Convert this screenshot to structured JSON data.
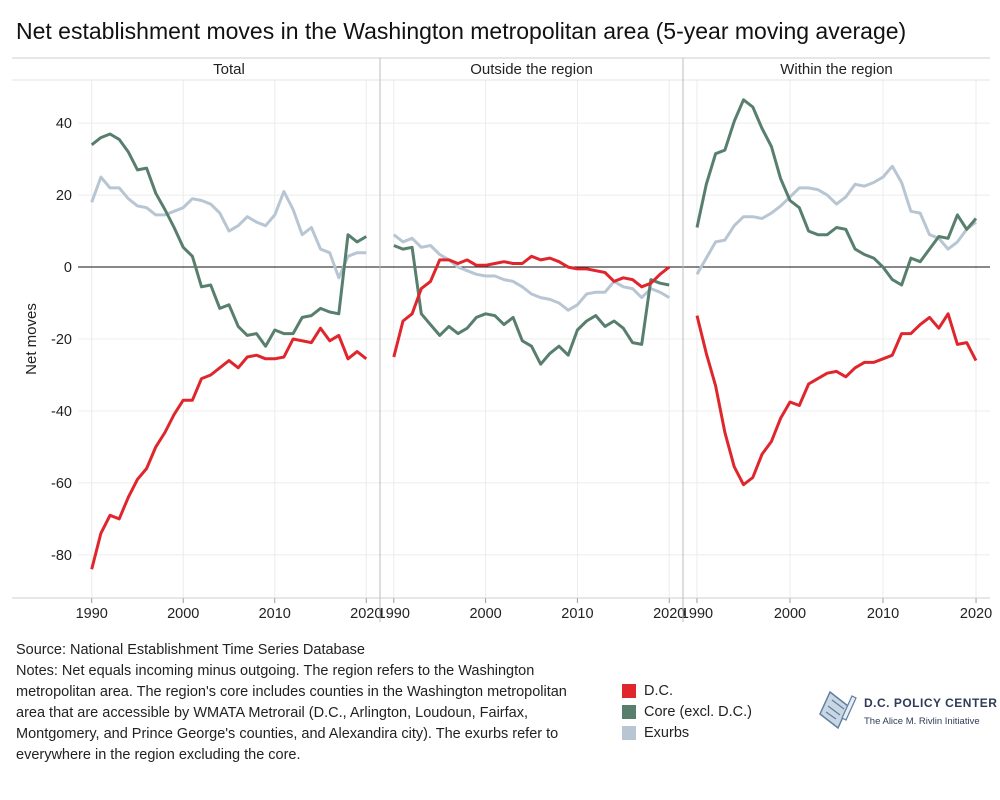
{
  "title": "Net establishment moves in the Washington metropolitan area (5-year moving average)",
  "source_line": "Source: National Establishment Time Series Database",
  "notes": "Notes: Net equals incoming minus outgoing. The region refers to the Washington metropolitan area. The region's core includes counties in the Washington metropolitan area that are accessible by WMATA Metrorail (D.C., Arlington, Loudoun, Fairfax, Montgomery, and Prince George's counties, and Alexandira city). The exurbs refer to everywhere in the region excluding the core.",
  "logo": {
    "name": "D.C. POLICY CENTER",
    "tagline": "The Alice M. Rivlin Initiative",
    "icon": "dc-map-document-icon"
  },
  "colors": {
    "dc": "#e0262d",
    "core": "#587f6e",
    "exurbs": "#b8c6d3"
  },
  "chart_data": {
    "type": "line",
    "ylabel": "Net moves",
    "ylim": [
      -92,
      52
    ],
    "yticks": [
      -80,
      -60,
      -40,
      -20,
      0,
      20,
      40
    ],
    "xlim": [
      1988.5,
      2021.5
    ],
    "xticks": [
      1990,
      2000,
      2010,
      2020
    ],
    "grid": true,
    "legend_position": "bottom",
    "legend": [
      "D.C.",
      "Core (excl. D.C.)",
      "Exurbs"
    ],
    "x": [
      1990,
      1991,
      1992,
      1993,
      1994,
      1995,
      1996,
      1997,
      1998,
      1999,
      2000,
      2001,
      2002,
      2003,
      2004,
      2005,
      2006,
      2007,
      2008,
      2009,
      2010,
      2011,
      2012,
      2013,
      2014,
      2015,
      2016,
      2017,
      2018,
      2019,
      2020
    ],
    "panels": [
      {
        "title": "Total",
        "series": [
          {
            "name": "D.C.",
            "color": "#e0262d",
            "values": [
              -84,
              -74,
              -69,
              -70,
              -64,
              -59,
              -56,
              -50,
              -46,
              -41,
              -37,
              -37,
              -31,
              -30,
              -28,
              -26,
              -28,
              -25,
              -24.5,
              -25.5,
              -25.5,
              -25,
              -20,
              -20.5,
              -21,
              -17,
              -20.5,
              -19,
              -25.5,
              -23.5,
              -25.5
            ]
          },
          {
            "name": "Core (excl. D.C.)",
            "color": "#587f6e",
            "values": [
              34,
              36,
              37,
              35.5,
              32,
              27,
              27.5,
              20.5,
              16,
              11,
              5.5,
              3,
              -5.5,
              -5,
              -11.5,
              -10.5,
              -16.5,
              -19,
              -18.5,
              -22,
              -17.5,
              -18.5,
              -18.5,
              -14,
              -13.5,
              -11.5,
              -12.5,
              -13,
              9,
              7,
              8.5
            ]
          },
          {
            "name": "Exurbs",
            "color": "#b8c6d3",
            "values": [
              18,
              25,
              22,
              22,
              19,
              17,
              16.5,
              14.5,
              14.5,
              15.5,
              16.5,
              19,
              18.5,
              17.5,
              15,
              10,
              11.5,
              14,
              12.5,
              11.5,
              14.5,
              21,
              16,
              9,
              11,
              5,
              4,
              -3,
              3,
              4,
              4
            ]
          }
        ]
      },
      {
        "title": "Outside the region",
        "series": [
          {
            "name": "D.C.",
            "color": "#e0262d",
            "values": [
              -25,
              -15,
              -13,
              -6,
              -4,
              2,
              2,
              1,
              2,
              0.5,
              0.5,
              1,
              1.5,
              1,
              1,
              3,
              2,
              2.5,
              1.5,
              0,
              -0.5,
              -0.5,
              -1,
              -1.5,
              -4,
              -3,
              -3.5,
              -5.5,
              -4.5,
              -2,
              0
            ]
          },
          {
            "name": "Core (excl. D.C.)",
            "color": "#587f6e",
            "values": [
              6,
              5,
              5.5,
              -13,
              -16,
              -19,
              -16.5,
              -18.5,
              -17,
              -14,
              -13,
              -13.5,
              -16,
              -14,
              -20.5,
              -22,
              -27,
              -24,
              -22,
              -24.5,
              -17.5,
              -15,
              -13.5,
              -16.5,
              -15,
              -17,
              -21,
              -21.5,
              -3.5,
              -4.5,
              -5
            ]
          },
          {
            "name": "Exurbs",
            "color": "#b8c6d3",
            "values": [
              9,
              7,
              8,
              5.5,
              6,
              3.5,
              2,
              0,
              -1,
              -2,
              -2.5,
              -2.5,
              -3.5,
              -4,
              -5.5,
              -7.5,
              -8.5,
              -9,
              -10,
              -12,
              -10.5,
              -7.5,
              -7,
              -7,
              -4,
              -5.5,
              -6,
              -8.5,
              -6,
              -7,
              -8.5
            ]
          }
        ]
      },
      {
        "title": "Within the region",
        "series": [
          {
            "name": "D.C.",
            "color": "#e0262d",
            "values": [
              -13.5,
              -24,
              -33,
              -46,
              -55.5,
              -60.5,
              -58.5,
              -52,
              -48.5,
              -42,
              -37.5,
              -38.5,
              -32.5,
              -31,
              -29.5,
              -29,
              -30.5,
              -28,
              -26.5,
              -26.5,
              -25.5,
              -24.5,
              -18.5,
              -18.5,
              -16,
              -14,
              -17,
              -13,
              -21.5,
              -21,
              -26
            ]
          },
          {
            "name": "Core (excl. D.C.)",
            "color": "#587f6e",
            "values": [
              11,
              23,
              31.5,
              32.5,
              40.5,
              46.5,
              44.5,
              38.5,
              33.5,
              24.5,
              18.5,
              16.5,
              10,
              9,
              9,
              11,
              10.5,
              5,
              3.5,
              2.5,
              0,
              -3.5,
              -5,
              2.5,
              1.5,
              5,
              8.5,
              8,
              14.5,
              10.5,
              13.5
            ]
          },
          {
            "name": "Exurbs",
            "color": "#b8c6d3",
            "values": [
              -2,
              2.5,
              7,
              7.5,
              11.5,
              14,
              14,
              13.5,
              15,
              17,
              19.5,
              22,
              22,
              21.5,
              20,
              17.5,
              19.5,
              23,
              22.5,
              23.5,
              25,
              28,
              23.5,
              15.5,
              15,
              9,
              8,
              5,
              7,
              10.5,
              12.5
            ]
          }
        ]
      }
    ]
  }
}
